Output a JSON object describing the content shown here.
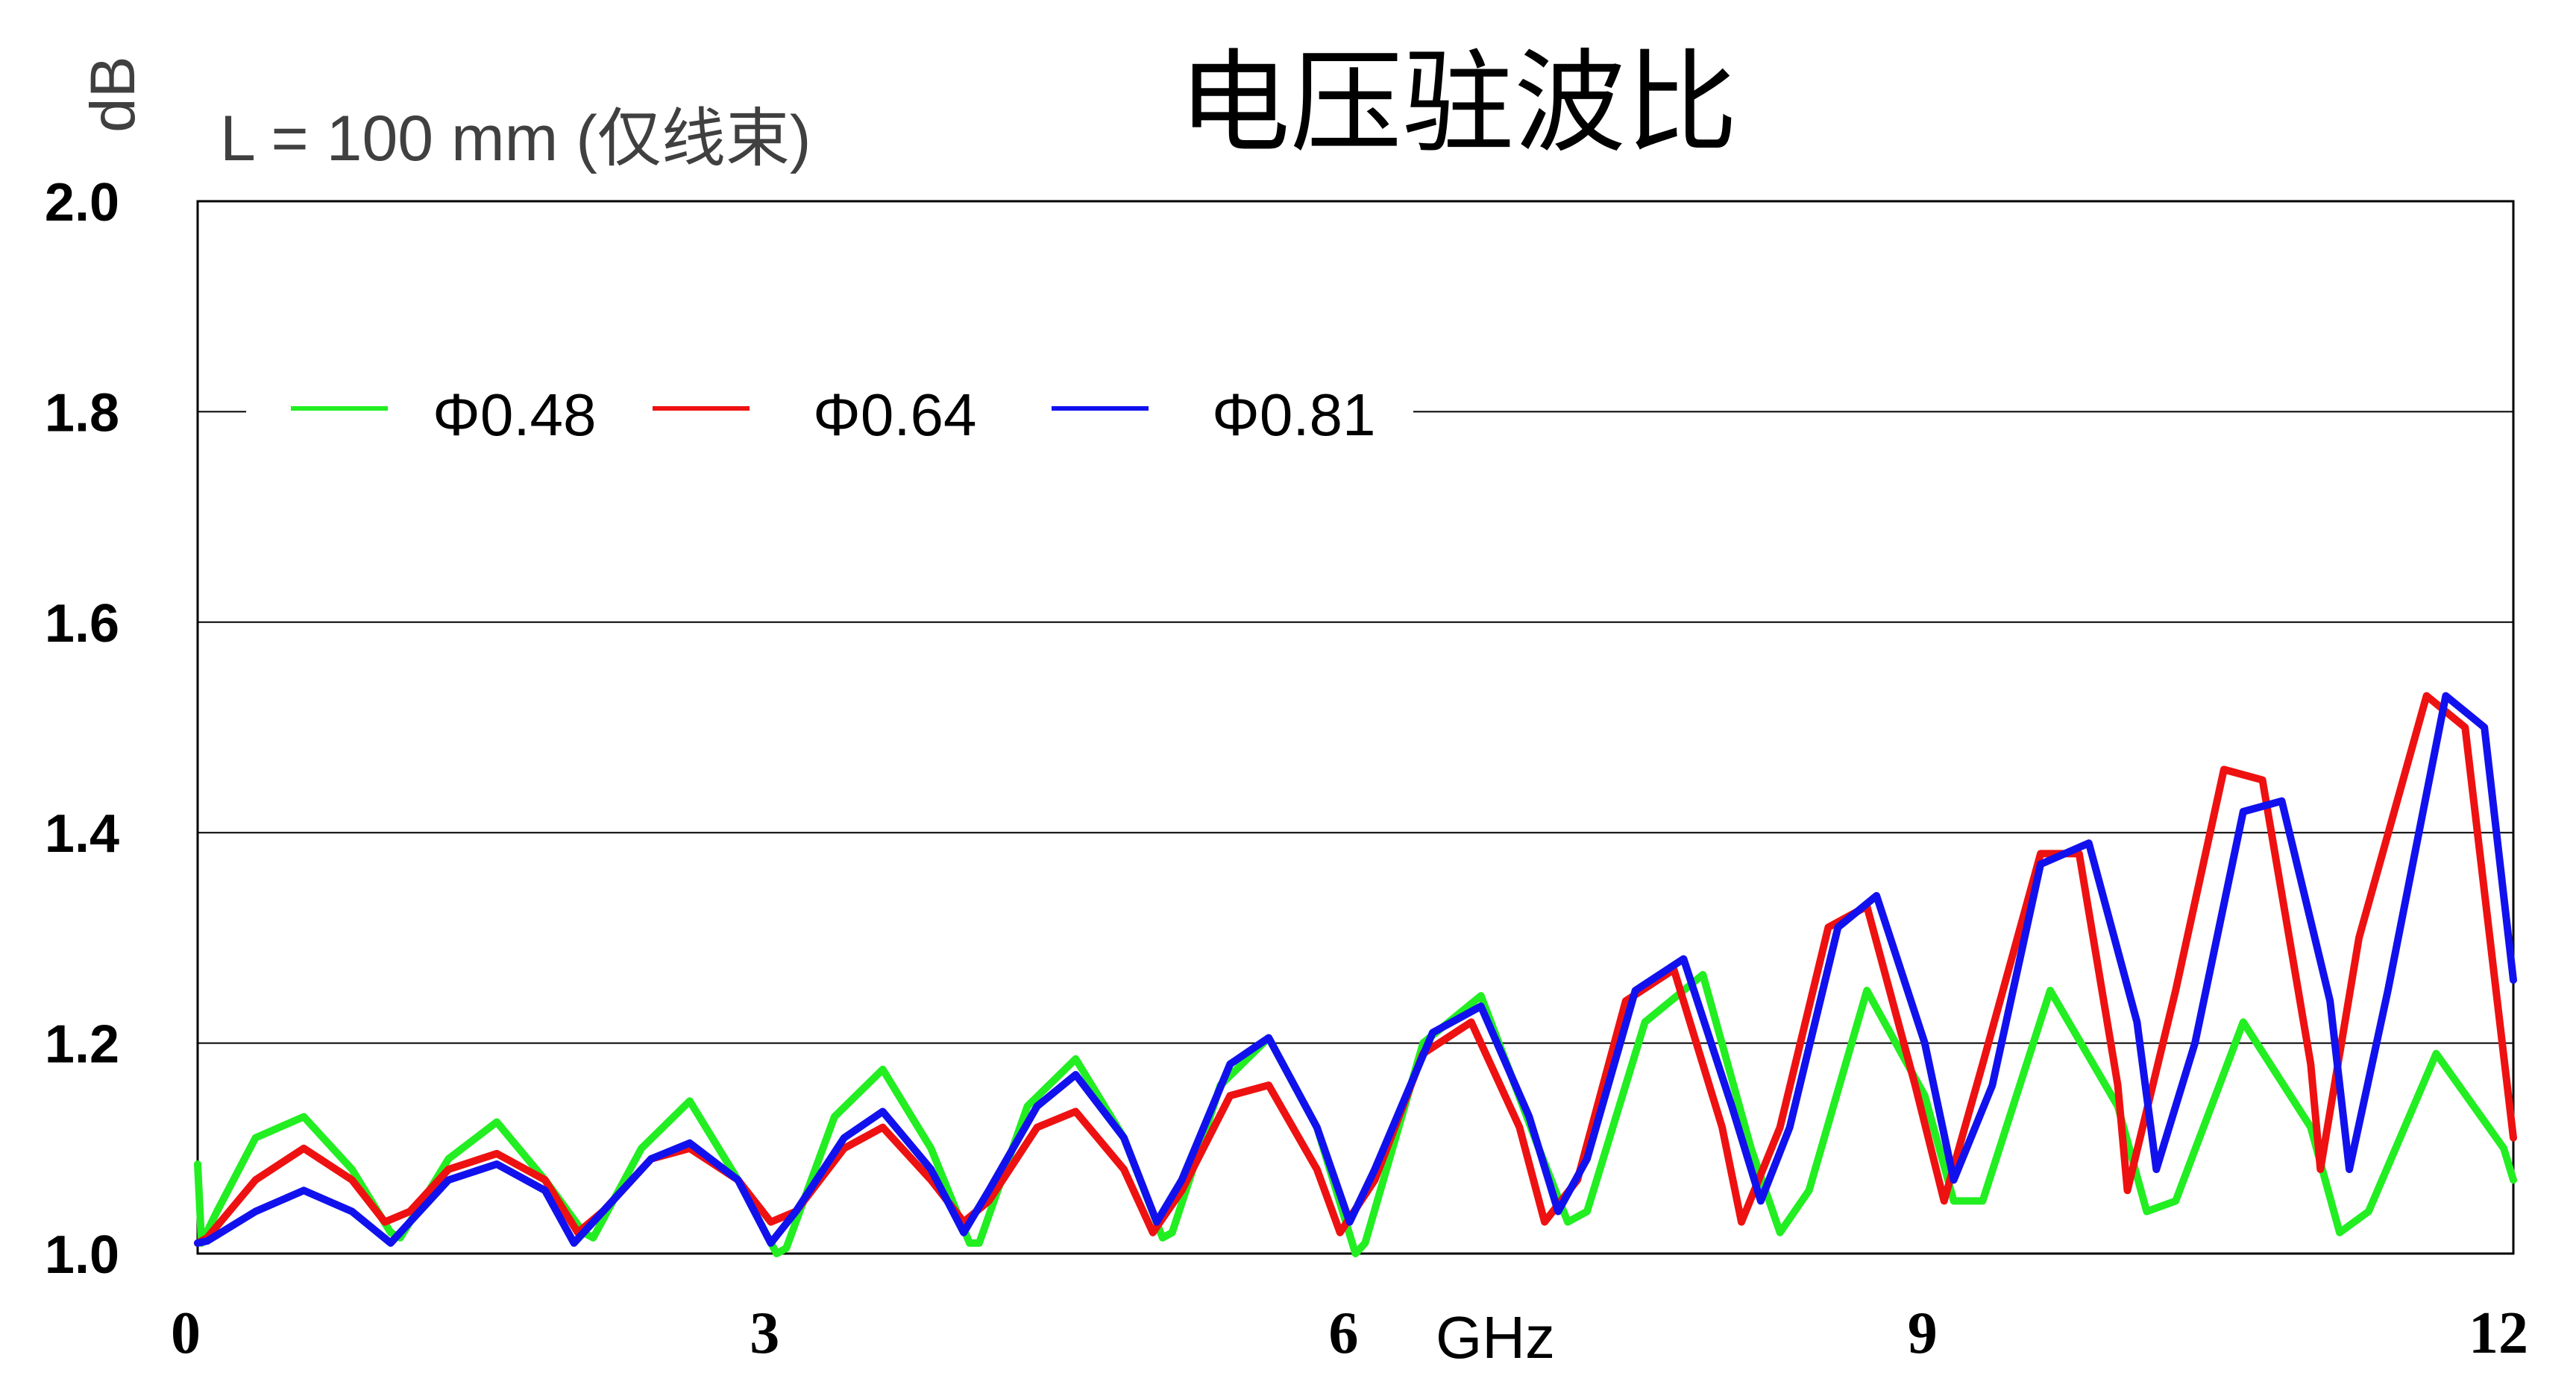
{
  "chart_data": {
    "type": "line",
    "title": "电压驻波比",
    "subtitle": "L = 100 mm (仅线束)",
    "ylabel": "dB",
    "xlabel": "GHz",
    "xlim": [
      0,
      12
    ],
    "ylim": [
      1.0,
      2.0
    ],
    "xticks": [
      0,
      3,
      6,
      9,
      12
    ],
    "xtick_labels": [
      "0",
      "3",
      "6",
      "9",
      "12"
    ],
    "yticks": [
      1.0,
      1.2,
      1.4,
      1.6,
      1.8,
      2.0
    ],
    "ytick_labels": [
      "1.0",
      "1.2",
      "1.4",
      "1.6",
      "1.8",
      "2.0"
    ],
    "grid": "horizontal",
    "legend_position": "top-left",
    "series": [
      {
        "name": "Φ0.48",
        "color": "#22ee22",
        "x": [
          0,
          0.02,
          0.1,
          0.3,
          0.55,
          0.8,
          1.0,
          1.05,
          1.3,
          1.55,
          1.8,
          2.0,
          2.05,
          2.3,
          2.55,
          2.8,
          3.0,
          3.05,
          3.3,
          3.55,
          3.8,
          4.0,
          4.05,
          4.3,
          4.55,
          4.8,
          5.0,
          5.05,
          5.3,
          5.55,
          5.8,
          6.0,
          6.05,
          6.35,
          6.65,
          6.95,
          7.1,
          7.2,
          7.5,
          7.8,
          8.05,
          8.2,
          8.35,
          8.65,
          8.95,
          9.1,
          9.25,
          9.6,
          9.95,
          10.1,
          10.25,
          10.6,
          10.95,
          11.1,
          11.25,
          11.6,
          11.95,
          12.0
        ],
        "y": [
          1.085,
          1.01,
          1.04,
          1.11,
          1.13,
          1.08,
          1.02,
          1.015,
          1.09,
          1.125,
          1.07,
          1.02,
          1.015,
          1.1,
          1.145,
          1.07,
          1.0,
          1.005,
          1.13,
          1.175,
          1.1,
          1.01,
          1.01,
          1.14,
          1.185,
          1.11,
          1.015,
          1.02,
          1.16,
          1.205,
          1.12,
          1.0,
          1.01,
          1.2,
          1.245,
          1.1,
          1.03,
          1.04,
          1.22,
          1.265,
          1.1,
          1.02,
          1.06,
          1.25,
          1.15,
          1.05,
          1.05,
          1.25,
          1.14,
          1.04,
          1.05,
          1.22,
          1.12,
          1.02,
          1.04,
          1.19,
          1.1,
          1.07
        ]
      },
      {
        "name": "Φ0.64",
        "color": "#ee1111",
        "x": [
          0,
          0.05,
          0.3,
          0.55,
          0.8,
          0.97,
          1.1,
          1.3,
          1.55,
          1.8,
          1.97,
          2.1,
          2.35,
          2.55,
          2.8,
          2.97,
          3.1,
          3.35,
          3.55,
          3.8,
          3.97,
          4.1,
          4.35,
          4.55,
          4.8,
          4.95,
          5.1,
          5.35,
          5.55,
          5.8,
          5.92,
          6.1,
          6.35,
          6.6,
          6.85,
          6.98,
          7.15,
          7.4,
          7.65,
          7.9,
          8.0,
          8.2,
          8.45,
          8.65,
          8.9,
          9.05,
          9.25,
          9.55,
          9.75,
          9.95,
          10.0,
          10.25,
          10.5,
          10.7,
          10.95,
          11.0,
          11.2,
          11.55,
          11.75,
          12.0
        ],
        "y": [
          1.01,
          1.015,
          1.07,
          1.1,
          1.07,
          1.03,
          1.04,
          1.08,
          1.095,
          1.07,
          1.02,
          1.04,
          1.09,
          1.1,
          1.07,
          1.03,
          1.04,
          1.1,
          1.12,
          1.07,
          1.03,
          1.05,
          1.12,
          1.135,
          1.08,
          1.02,
          1.06,
          1.15,
          1.16,
          1.08,
          1.02,
          1.07,
          1.19,
          1.22,
          1.12,
          1.03,
          1.07,
          1.24,
          1.27,
          1.12,
          1.03,
          1.12,
          1.31,
          1.33,
          1.16,
          1.05,
          1.18,
          1.38,
          1.38,
          1.16,
          1.06,
          1.25,
          1.46,
          1.45,
          1.18,
          1.08,
          1.3,
          1.53,
          1.5,
          1.11
        ]
      },
      {
        "name": "Φ0.81",
        "color": "#1111ee",
        "x": [
          0,
          0.05,
          0.3,
          0.55,
          0.8,
          1.0,
          1.1,
          1.3,
          1.55,
          1.8,
          1.95,
          2.1,
          2.35,
          2.55,
          2.8,
          2.97,
          3.1,
          3.35,
          3.55,
          3.8,
          3.97,
          4.1,
          4.35,
          4.55,
          4.8,
          4.97,
          5.1,
          5.35,
          5.55,
          5.8,
          5.97,
          6.1,
          6.4,
          6.65,
          6.9,
          7.05,
          7.2,
          7.45,
          7.7,
          7.95,
          8.1,
          8.25,
          8.5,
          8.7,
          8.95,
          9.1,
          9.3,
          9.55,
          9.8,
          10.05,
          10.15,
          10.35,
          10.6,
          10.8,
          11.05,
          11.15,
          11.35,
          11.65,
          11.85,
          12.0
        ],
        "y": [
          1.01,
          1.012,
          1.04,
          1.06,
          1.04,
          1.01,
          1.03,
          1.07,
          1.085,
          1.06,
          1.01,
          1.04,
          1.09,
          1.105,
          1.07,
          1.01,
          1.04,
          1.11,
          1.135,
          1.08,
          1.02,
          1.06,
          1.14,
          1.17,
          1.11,
          1.03,
          1.07,
          1.18,
          1.205,
          1.12,
          1.03,
          1.08,
          1.21,
          1.235,
          1.13,
          1.04,
          1.09,
          1.25,
          1.28,
          1.14,
          1.05,
          1.12,
          1.31,
          1.34,
          1.2,
          1.07,
          1.16,
          1.37,
          1.39,
          1.22,
          1.08,
          1.2,
          1.42,
          1.43,
          1.24,
          1.08,
          1.25,
          1.53,
          1.5,
          1.26
        ]
      }
    ]
  }
}
